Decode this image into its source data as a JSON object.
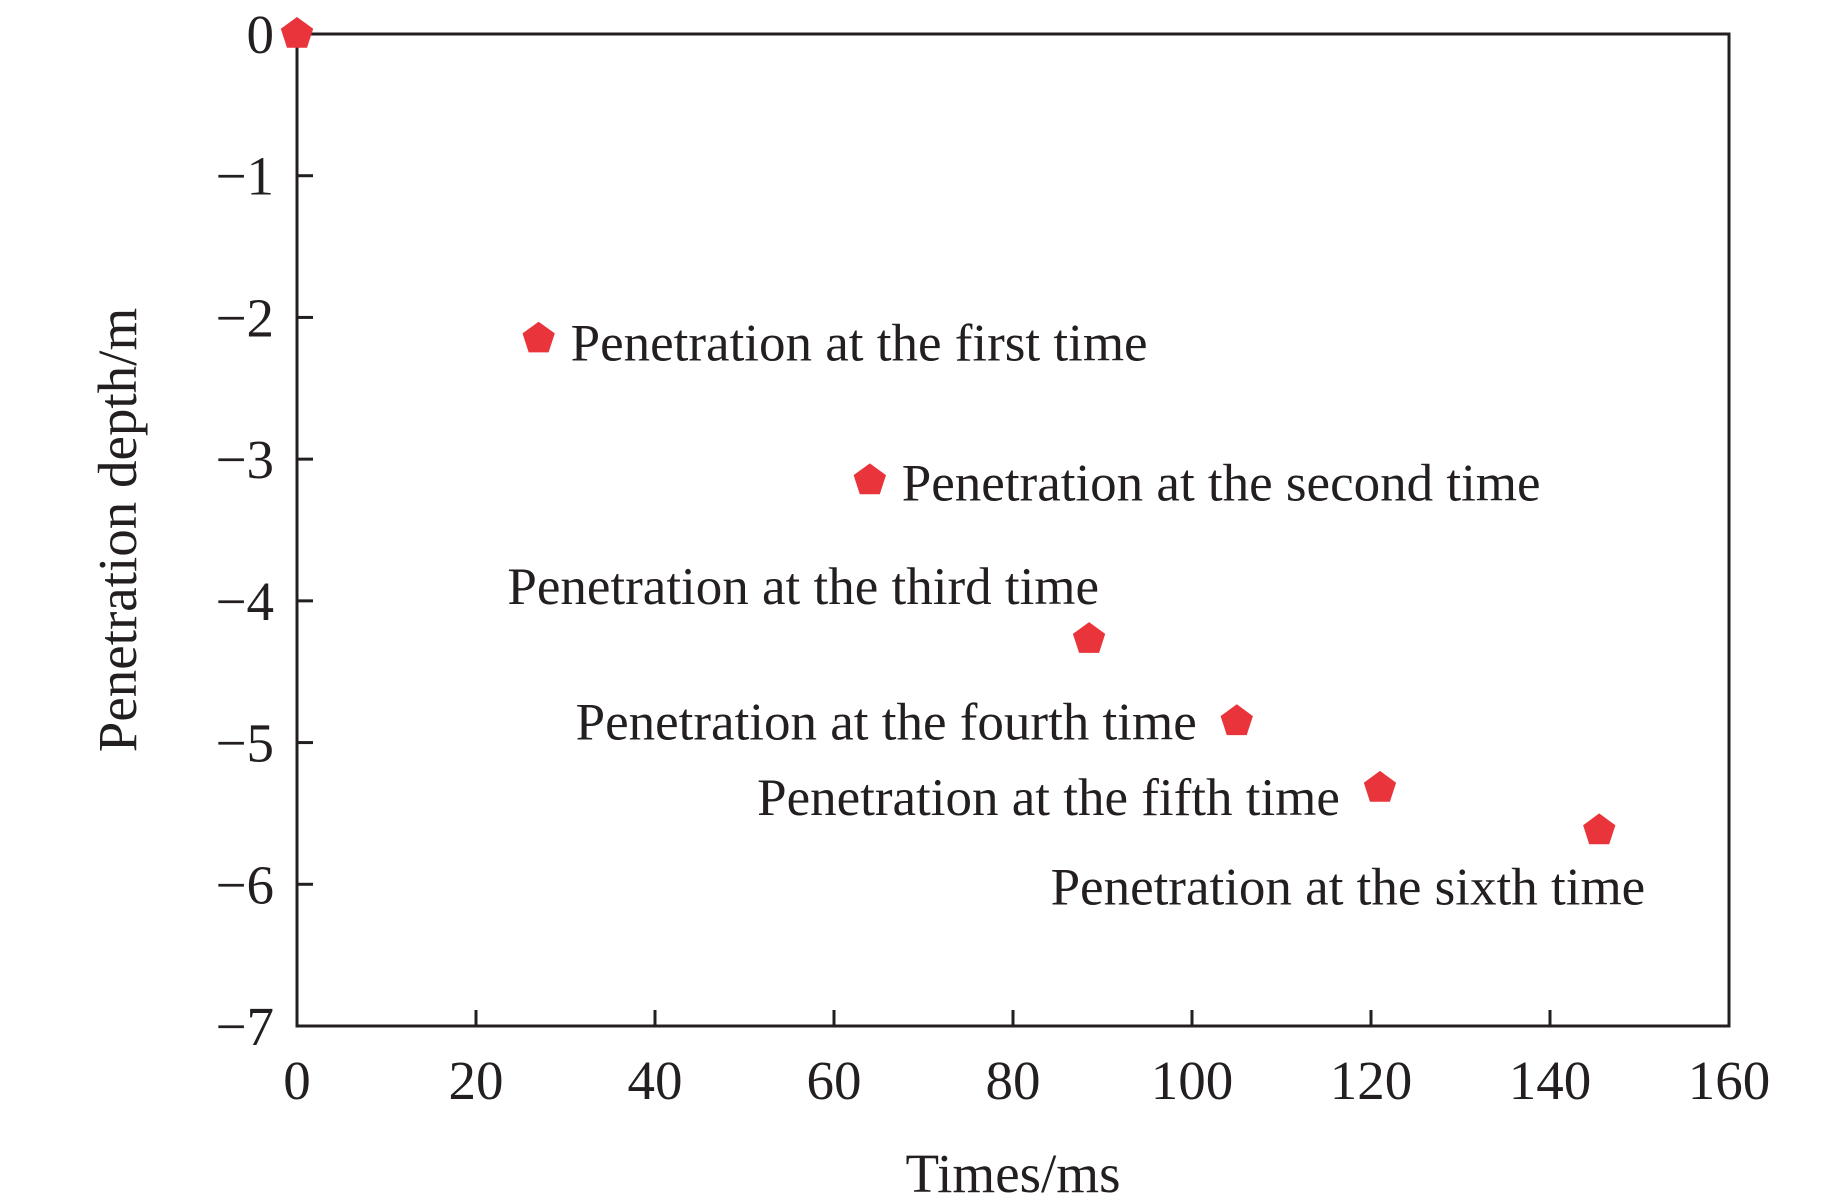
{
  "chart_data": {
    "type": "scatter",
    "xlabel": "Times/ms",
    "ylabel": "Penetration depth/m",
    "xlim": [
      0,
      160
    ],
    "ylim": [
      -7,
      0
    ],
    "x_ticks": [
      0,
      20,
      40,
      60,
      80,
      100,
      120,
      140,
      160
    ],
    "y_ticks": [
      0,
      -1,
      -2,
      -3,
      -4,
      -5,
      -6,
      -7
    ],
    "y_tick_labels": [
      "0",
      "−1",
      "−2",
      "−3",
      "−4",
      "−5",
      "−6",
      "−7"
    ],
    "grid": false,
    "marker_color": "#e8343a",
    "axis_color": "#231f20",
    "points": [
      {
        "x": 0,
        "y": 0,
        "label": ""
      },
      {
        "x": 27,
        "y": -2.15,
        "label": "Penetration at the first time"
      },
      {
        "x": 64,
        "y": -3.15,
        "label": "Penetration at the second time"
      },
      {
        "x": 88.5,
        "y": -4.27,
        "label": "Penetration at the third time"
      },
      {
        "x": 105,
        "y": -4.85,
        "label": "Penetration at the fourth time"
      },
      {
        "x": 121,
        "y": -5.32,
        "label": "Penetration at the fifth time"
      },
      {
        "x": 145.5,
        "y": -5.62,
        "label": "Penetration at the sixth time"
      }
    ]
  }
}
